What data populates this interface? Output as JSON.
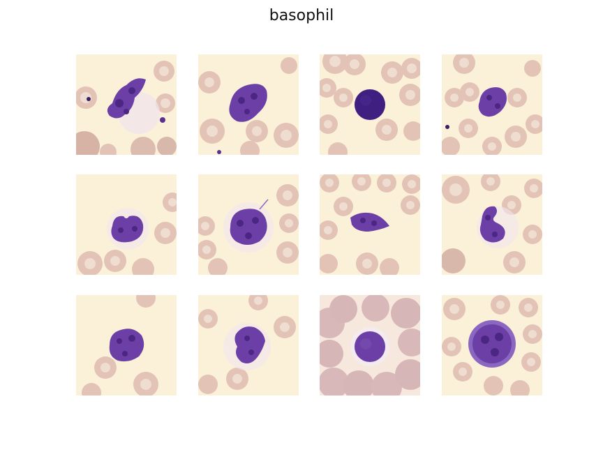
{
  "figure": {
    "title": "basophil"
  },
  "colors": {
    "background": "#fbf1d8",
    "rbc_fill": "#e2c3b6",
    "rbc_center": "#eeddd0",
    "rbc_edge": "#c9a79b",
    "nucleus": "#6b3fa6",
    "nucleus_dark": "#4b2683",
    "granule": "#8b67c2"
  },
  "tiles": [
    {
      "label": "tile-1",
      "nucleus": "lobed"
    },
    {
      "label": "tile-2",
      "nucleus": "mass"
    },
    {
      "label": "tile-3",
      "nucleus": "round-dark"
    },
    {
      "label": "tile-4",
      "nucleus": "small-mass"
    },
    {
      "label": "tile-5",
      "nucleus": "bilobed"
    },
    {
      "label": "tile-6",
      "nucleus": "mass"
    },
    {
      "label": "tile-7",
      "nucleus": "flat"
    },
    {
      "label": "tile-8",
      "nucleus": "bilobed"
    },
    {
      "label": "tile-9",
      "nucleus": "round"
    },
    {
      "label": "tile-10",
      "nucleus": "lobed"
    },
    {
      "label": "tile-11",
      "nucleus": "round-in-clump"
    },
    {
      "label": "tile-12",
      "nucleus": "large-halo"
    }
  ]
}
